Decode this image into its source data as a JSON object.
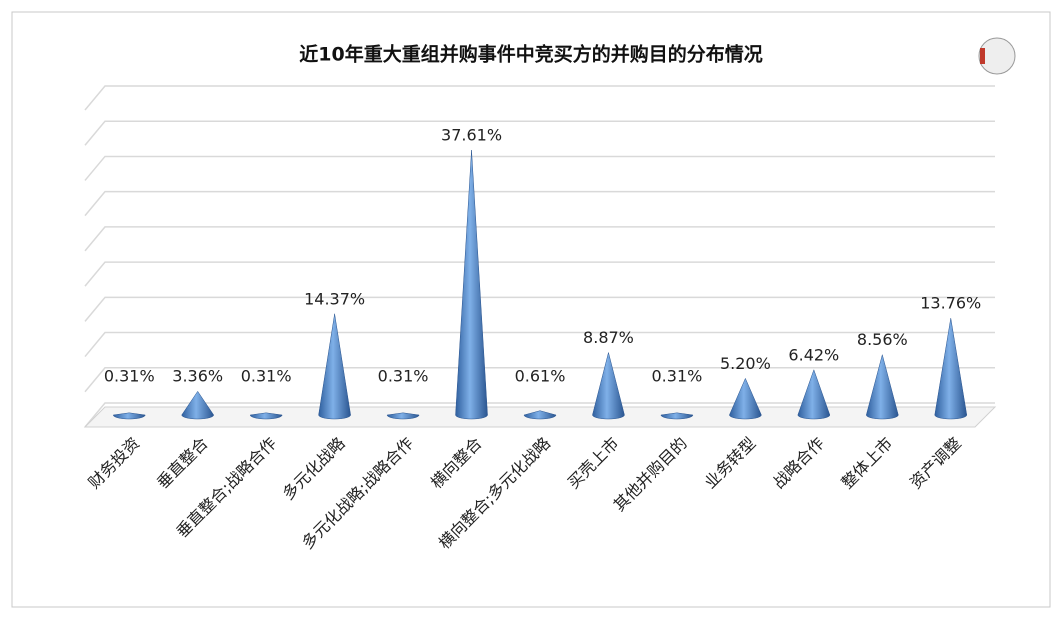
{
  "chart_data": {
    "type": "cone",
    "title": "近10年重大重组并购事件中竞买方的并购目的分布情况",
    "categories": [
      "财务投资",
      "垂直整合",
      "垂直整合;战略合作",
      "多元化战略",
      "多元化战略;战略合作",
      "横向整合",
      "横向整合;多元化战略",
      "买壳上市",
      "其他并购目的",
      "业务转型",
      "战略合作",
      "整体上市",
      "资产调整"
    ],
    "values": [
      0.31,
      3.36,
      0.31,
      14.37,
      0.31,
      37.61,
      0.61,
      8.87,
      0.31,
      5.2,
      6.42,
      8.56,
      13.76
    ],
    "value_labels": [
      "0.31%",
      "3.36%",
      "0.31%",
      "14.37%",
      "0.31%",
      "37.61%",
      "0.61%",
      "8.87%",
      "0.31%",
      "5.20%",
      "6.42%",
      "8.56%",
      "13.76%"
    ],
    "color": "#4a7fc1",
    "ylim": [
      0,
      45
    ],
    "yticks": [
      0,
      5,
      10,
      15,
      20,
      25,
      30,
      35,
      40,
      45
    ],
    "grid": true
  }
}
